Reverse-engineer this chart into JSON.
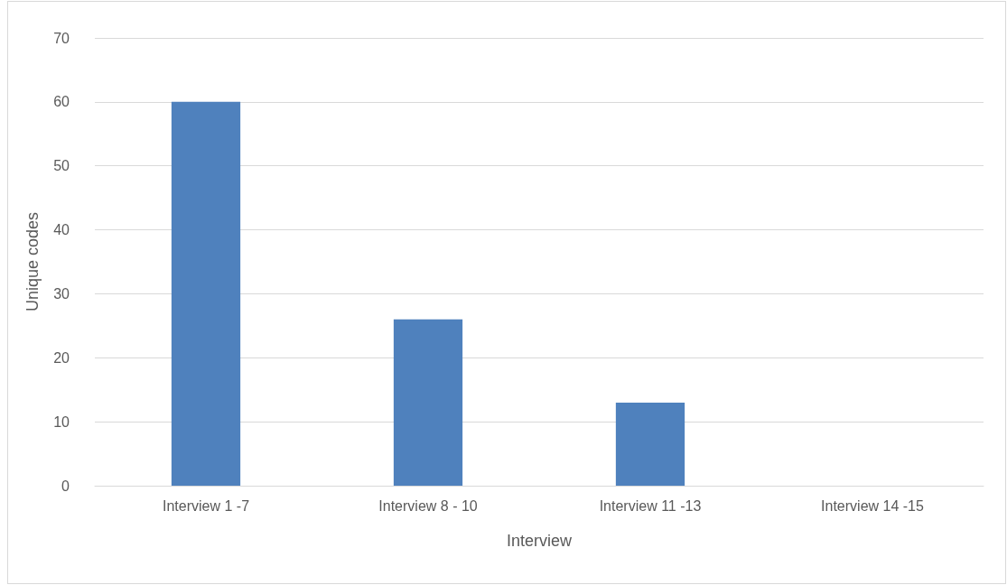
{
  "chart_data": {
    "type": "bar",
    "xlabel": "Interview",
    "ylabel": "Unique codes",
    "categories": [
      "Interview 1 -7",
      "Interview 8 - 10",
      "Interview 11 -13",
      "Interview 14 -15"
    ],
    "values": [
      60,
      26,
      13,
      0
    ],
    "color": "#4f81bd",
    "ylim": [
      0,
      70
    ],
    "yticks": [
      0,
      10,
      20,
      30,
      40,
      50,
      60,
      70
    ],
    "grid": "y"
  }
}
